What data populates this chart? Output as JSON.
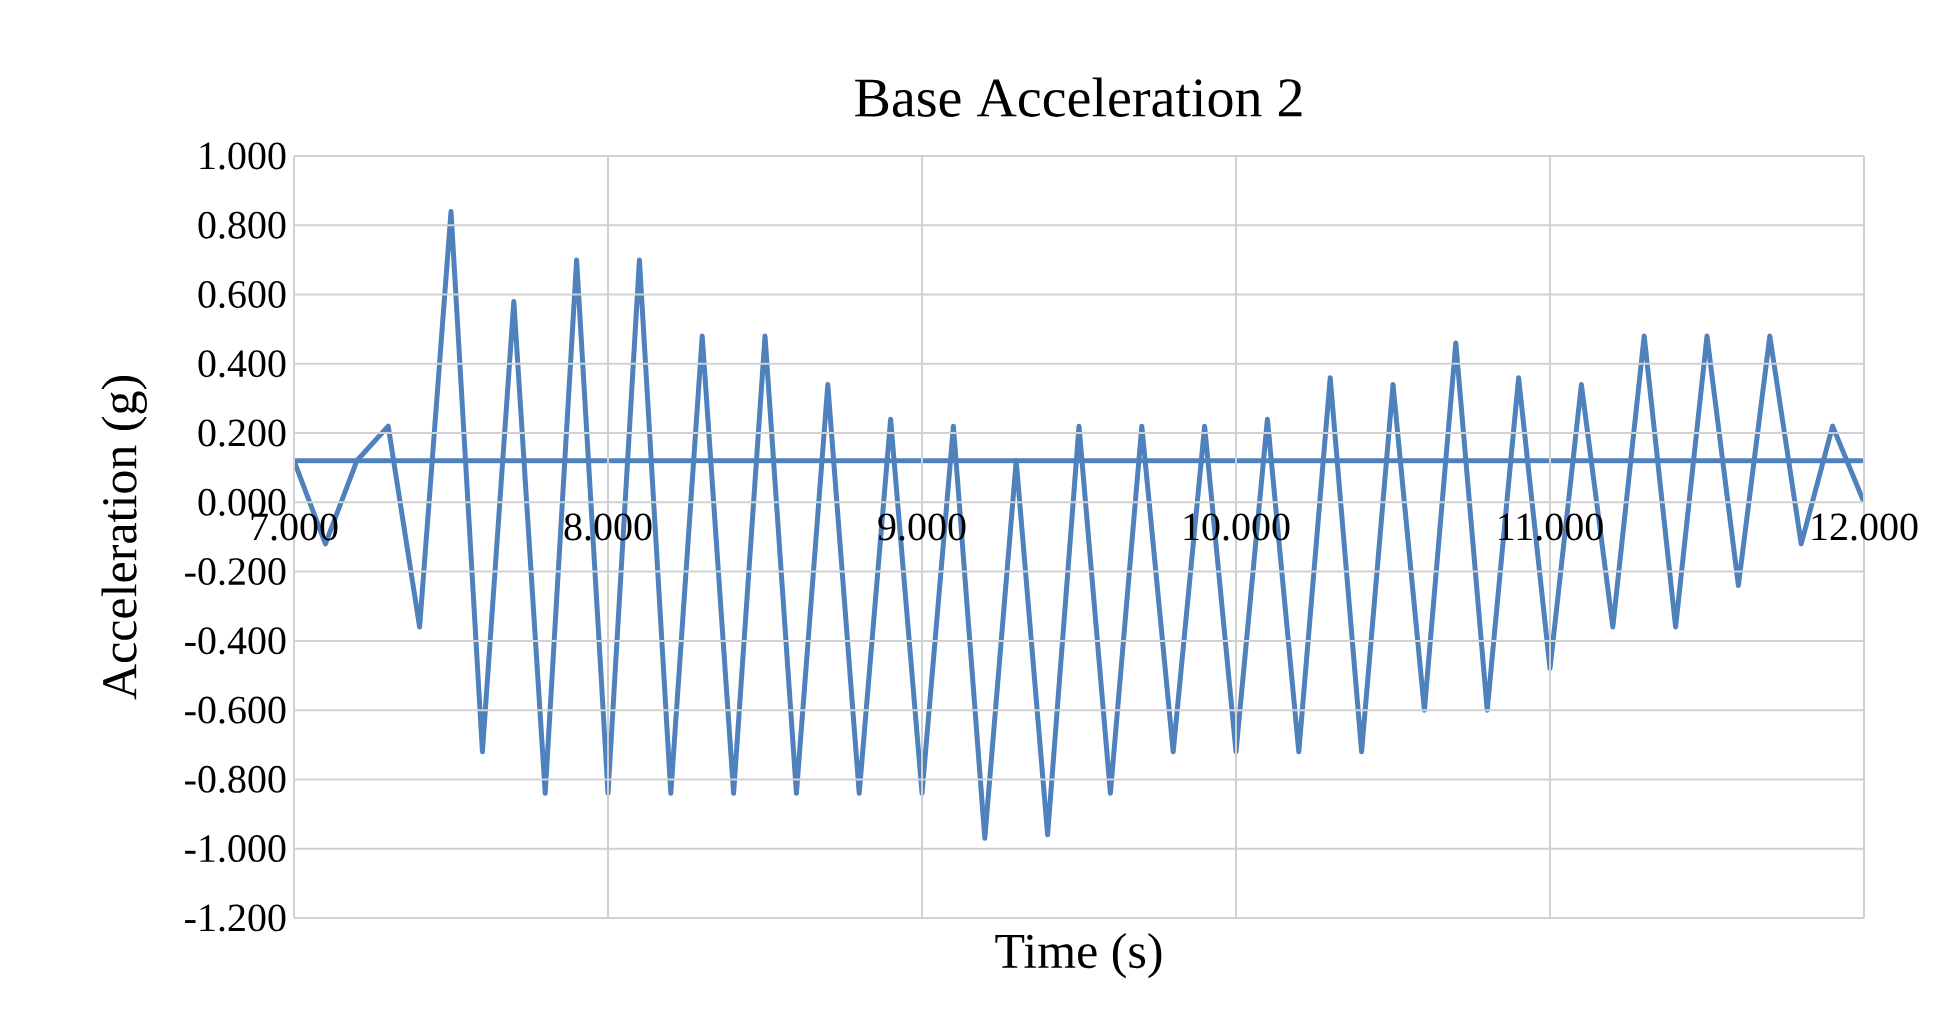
{
  "chart_data": {
    "type": "line",
    "title": "Base Acceleration 2",
    "xlabel": "Time (s)",
    "ylabel": "Acceleration (g)",
    "x": [
      7.0,
      7.1,
      7.2,
      7.3,
      7.4,
      7.5,
      7.6,
      7.7,
      7.8,
      7.9,
      8.0,
      8.1,
      8.2,
      8.3,
      8.4,
      8.5,
      8.6,
      8.7,
      8.8,
      8.9,
      9.0,
      9.1,
      9.2,
      9.3,
      9.4,
      9.5,
      9.6,
      9.7,
      9.8,
      9.9,
      10.0,
      10.1,
      10.2,
      10.3,
      10.4,
      10.5,
      10.6,
      10.7,
      10.8,
      10.9,
      11.0,
      11.1,
      11.2,
      11.3,
      11.4,
      11.5,
      11.6,
      11.7,
      11.8,
      11.9,
      12.0
    ],
    "series": [
      {
        "color": "#4f81bd",
        "values": [
          0.12,
          -0.12,
          0.12,
          0.22,
          -0.36,
          0.84,
          -0.72,
          0.58,
          -0.84,
          0.7,
          -0.84,
          0.7,
          -0.84,
          0.48,
          -0.84,
          0.48,
          -0.84,
          0.34,
          -0.84,
          0.24,
          -0.84,
          0.22,
          -0.97,
          0.12,
          -0.96,
          0.22,
          -0.84,
          0.22,
          -0.72,
          0.22,
          -0.72,
          0.24,
          -0.72,
          0.36,
          -0.72,
          0.34,
          -0.6,
          0.46,
          -0.6,
          0.36,
          -0.48,
          0.34,
          -0.36,
          0.48,
          -0.36,
          0.48,
          -0.24,
          0.48,
          -0.12,
          0.22,
          0.0
        ]
      },
      {
        "type": "line",
        "color": "#4f81bd",
        "x": [
          7.0,
          12.0
        ],
        "values": [
          0.12,
          0.12
        ]
      }
    ],
    "xlim": [
      7.0,
      12.0
    ],
    "xticks": [
      {
        "value": 7,
        "label": "7.000"
      },
      {
        "value": 8,
        "label": "8.000"
      },
      {
        "value": 9,
        "label": "9.000"
      },
      {
        "value": 10,
        "label": "10.000"
      },
      {
        "value": 11,
        "label": "11.000"
      },
      {
        "value": 12,
        "label": "12.000"
      }
    ],
    "ylim": [
      -1.2,
      1.0
    ],
    "yticks": [
      {
        "value": -1.2,
        "label": "-1.200"
      },
      {
        "value": -1.0,
        "label": "-1.000"
      },
      {
        "value": -0.8,
        "label": "-0.800"
      },
      {
        "value": -0.6,
        "label": "-0.600"
      },
      {
        "value": -0.4,
        "label": "-0.400"
      },
      {
        "value": -0.2,
        "label": "-0.200"
      },
      {
        "value": 0,
        "label": "0.000"
      },
      {
        "value": 0.2,
        "label": "0.200"
      },
      {
        "value": 0.4,
        "label": "0.400"
      },
      {
        "value": 0.6,
        "label": "0.600"
      },
      {
        "value": 0.8,
        "label": "0.800"
      },
      {
        "value": 1.0,
        "label": "1.000"
      }
    ],
    "grid": true,
    "marker": "none",
    "line_style": "solid"
  }
}
